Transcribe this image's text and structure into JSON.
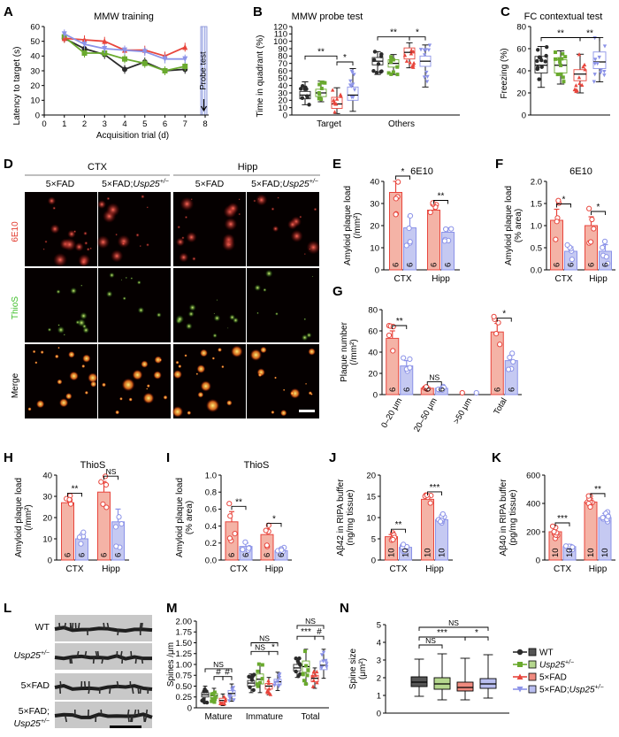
{
  "colors": {
    "wt": "#2b2b2b",
    "usp25": "#6aaa2e",
    "fad": "#e8453c",
    "fad_usp25": "#8c93e8",
    "fad_fill": "#f4b3a6",
    "fad_usp25_fill": "#c5c9f2",
    "probe_line": "#8a9ad8"
  },
  "legend": [
    {
      "key": "wt",
      "label": "WT",
      "italic": false
    },
    {
      "key": "usp25",
      "label": "Usp25",
      "sup": "+/−",
      "italic": true
    },
    {
      "key": "fad",
      "label": "5×FAD",
      "italic": false
    },
    {
      "key": "fad_usp25",
      "label": "5×FAD;",
      "label2": "Usp25",
      "sup": "+/−",
      "italic": false
    }
  ],
  "panel_letters": [
    "A",
    "B",
    "C",
    "D",
    "E",
    "F",
    "G",
    "H",
    "I",
    "J",
    "K",
    "L",
    "M",
    "N"
  ],
  "chart_data": [
    {
      "id": "A",
      "type": "line",
      "title": "MMW  training",
      "xlabel": "Acquisition trial (d)",
      "ylabel": "Latency to target (s)",
      "xlim": [
        0,
        8
      ],
      "ylim": [
        0,
        60
      ],
      "x_ticks": [
        0,
        1,
        2,
        3,
        4,
        5,
        6,
        7,
        8
      ],
      "y_ticks": [
        0,
        10,
        20,
        30,
        40,
        50,
        60
      ],
      "x": [
        1,
        2,
        3,
        4,
        5,
        6,
        7
      ],
      "series": [
        {
          "key": "wt",
          "values": [
            52,
            45,
            41,
            31,
            36,
            30,
            31
          ]
        },
        {
          "key": "usp25",
          "values": [
            53,
            42,
            42,
            38,
            35,
            30,
            33
          ]
        },
        {
          "key": "fad",
          "values": [
            52,
            51,
            50,
            44,
            44,
            40,
            46
          ]
        },
        {
          "key": "fad_usp25",
          "values": [
            55,
            48,
            45,
            44,
            43,
            38,
            38
          ]
        }
      ],
      "annotation": "Probe test"
    },
    {
      "id": "B",
      "type": "box",
      "title": "MMW  probe test",
      "ylabel": "Time in quadrant (%)",
      "ylim": [
        0,
        120
      ],
      "y_ticks": [
        0,
        10,
        20,
        30,
        40,
        50,
        60,
        70,
        80,
        90,
        100,
        110,
        120
      ],
      "categories": [
        "Target",
        "Others"
      ],
      "groups": [
        {
          "category": "Target",
          "key": "wt",
          "median": 27,
          "q1": 22,
          "q3": 32,
          "min": 14,
          "max": 45
        },
        {
          "category": "Target",
          "key": "usp25",
          "median": 30,
          "q1": 25,
          "q3": 35,
          "min": 18,
          "max": 46
        },
        {
          "category": "Target",
          "key": "fad",
          "median": 15,
          "q1": 9,
          "q3": 24,
          "min": 2,
          "max": 37
        },
        {
          "category": "Target",
          "key": "fad_usp25",
          "median": 27,
          "q1": 20,
          "q3": 38,
          "min": 5,
          "max": 63
        },
        {
          "category": "Others",
          "key": "wt",
          "median": 73,
          "q1": 68,
          "q3": 78,
          "min": 55,
          "max": 86
        },
        {
          "category": "Others",
          "key": "usp25",
          "median": 70,
          "q1": 65,
          "q3": 75,
          "min": 55,
          "max": 82
        },
        {
          "category": "Others",
          "key": "fad",
          "median": 85,
          "q1": 76,
          "q3": 91,
          "min": 64,
          "max": 98
        },
        {
          "category": "Others",
          "key": "fad_usp25",
          "median": 73,
          "q1": 66,
          "q3": 80,
          "min": 38,
          "max": 95
        }
      ],
      "significance": [
        "**",
        "*",
        "**",
        "*"
      ]
    },
    {
      "id": "C",
      "type": "box",
      "title": "FC contextual test",
      "ylabel": "Freezing (%)",
      "ylim": [
        0,
        80
      ],
      "y_ticks": [
        0,
        20,
        40,
        60,
        80
      ],
      "groups": [
        {
          "key": "wt",
          "median": 45,
          "q1": 38,
          "q3": 53,
          "min": 25,
          "max": 62
        },
        {
          "key": "usp25",
          "median": 45,
          "q1": 38,
          "q3": 50,
          "min": 28,
          "max": 58
        },
        {
          "key": "fad",
          "median": 37,
          "q1": 31,
          "q3": 41,
          "min": 20,
          "max": 55
        },
        {
          "key": "fad_usp25",
          "median": 48,
          "q1": 42,
          "q3": 57,
          "min": 30,
          "max": 70
        }
      ],
      "significance": [
        "**",
        "**"
      ]
    },
    {
      "id": "E",
      "type": "bar",
      "title": "6E10",
      "ylabel": "Amyloid plaque load",
      "ylabel2": "(/mm²)",
      "ylim": [
        0,
        40
      ],
      "y_ticks": [
        0,
        10,
        20,
        30,
        40
      ],
      "categories": [
        "CTX",
        "Hipp"
      ],
      "series": [
        {
          "key": "fad",
          "values": [
            35,
            27
          ],
          "errors": [
            5,
            2
          ],
          "n": [
            6,
            6
          ]
        },
        {
          "key": "fad_usp25",
          "values": [
            19,
            17
          ],
          "errors": [
            5,
            2
          ],
          "n": [
            6,
            6
          ]
        }
      ],
      "significance": [
        "*",
        "**"
      ]
    },
    {
      "id": "F",
      "type": "bar",
      "title": "6E10",
      "ylabel": "Amyloid plaque load",
      "ylabel2": "(% area)",
      "ylim": [
        0,
        2.0
      ],
      "y_ticks": [
        0,
        0.5,
        1.0,
        1.5,
        2.0
      ],
      "categories": [
        "CTX",
        "Hipp"
      ],
      "series": [
        {
          "key": "fad",
          "values": [
            1.12,
            1.0
          ],
          "errors": [
            0.25,
            0.2
          ],
          "n": [
            6,
            6
          ]
        },
        {
          "key": "fad_usp25",
          "values": [
            0.42,
            0.42
          ],
          "errors": [
            0.1,
            0.15
          ],
          "n": [
            6,
            6
          ]
        }
      ],
      "significance": [
        "*",
        "*"
      ]
    },
    {
      "id": "G",
      "type": "bar",
      "ylabel": "Plaque number",
      "ylabel2": "(/mm²)",
      "ylim": [
        0,
        80
      ],
      "y_ticks": [
        0,
        20,
        40,
        60,
        80
      ],
      "categories": [
        "0–20 μm",
        "20–50 μm",
        ">50 μm",
        "Total"
      ],
      "series": [
        {
          "key": "fad",
          "values": [
            53,
            6,
            0,
            59
          ],
          "errors": [
            7,
            1,
            0,
            8
          ],
          "n": [
            6,
            6,
            null,
            6
          ]
        },
        {
          "key": "fad_usp25",
          "values": [
            27,
            6,
            0,
            32
          ],
          "errors": [
            5,
            1,
            0,
            5
          ],
          "n": [
            6,
            6,
            null,
            6
          ]
        }
      ],
      "significance": [
        "**",
        "NS",
        "",
        "*"
      ]
    },
    {
      "id": "H",
      "type": "bar",
      "title": "ThioS",
      "ylabel": "Amyloid plaque load",
      "ylabel2": "(/mm²)",
      "ylim": [
        0,
        40
      ],
      "y_ticks": [
        0,
        10,
        20,
        30,
        40
      ],
      "categories": [
        "CTX",
        "Hipp"
      ],
      "series": [
        {
          "key": "fad",
          "values": [
            27,
            32
          ],
          "errors": [
            2,
            5
          ],
          "n": [
            6,
            6
          ]
        },
        {
          "key": "fad_usp25",
          "values": [
            10,
            18
          ],
          "errors": [
            2,
            6
          ],
          "n": [
            6,
            6
          ]
        }
      ],
      "significance": [
        "**",
        "NS"
      ]
    },
    {
      "id": "I",
      "type": "bar",
      "title": "ThioS",
      "ylabel": "Amyloid plaque load",
      "ylabel2": "(% area)",
      "ylim": [
        0,
        1.0
      ],
      "y_ticks": [
        0,
        0.2,
        0.4,
        0.6,
        0.8,
        1.0
      ],
      "categories": [
        "CTX",
        "Hipp"
      ],
      "series": [
        {
          "key": "fad",
          "values": [
            0.45,
            0.3
          ],
          "errors": [
            0.12,
            0.07
          ],
          "n": [
            6,
            6
          ]
        },
        {
          "key": "fad_usp25",
          "values": [
            0.16,
            0.11
          ],
          "errors": [
            0.04,
            0.02
          ],
          "n": [
            6,
            6
          ]
        }
      ],
      "significance": [
        "**",
        "*"
      ]
    },
    {
      "id": "J",
      "type": "bar",
      "ylabel": "Aβ42 in RIPA buffer",
      "ylabel2": "(ng/mg tissue)",
      "ylim": [
        0,
        20
      ],
      "y_ticks": [
        0,
        5,
        10,
        15,
        20
      ],
      "categories": [
        "CTX",
        "Hipp"
      ],
      "series": [
        {
          "key": "fad",
          "values": [
            5.5,
            14.3
          ],
          "errors": [
            0.5,
            0.5
          ],
          "n": [
            10,
            10
          ]
        },
        {
          "key": "fad_usp25",
          "values": [
            3.0,
            9.5
          ],
          "errors": [
            0.5,
            0.7
          ],
          "n": [
            10,
            10
          ]
        }
      ],
      "significance": [
        "**",
        "***"
      ]
    },
    {
      "id": "K",
      "type": "bar",
      "ylabel": "Aβ40 in RIPA buffer",
      "ylabel2": "(pg/mg tissue)",
      "ylim": [
        0,
        600
      ],
      "y_ticks": [
        0,
        200,
        400,
        600
      ],
      "categories": [
        "CTX",
        "Hipp"
      ],
      "series": [
        {
          "key": "fad",
          "values": [
            200,
            410
          ],
          "errors": [
            25,
            22
          ],
          "n": [
            10,
            10
          ]
        },
        {
          "key": "fad_usp25",
          "values": [
            95,
            300
          ],
          "errors": [
            15,
            30
          ],
          "n": [
            10,
            10
          ]
        }
      ],
      "significance": [
        "***",
        "**"
      ]
    },
    {
      "id": "M",
      "type": "box",
      "ylabel": "Spines /μm",
      "ylim": [
        0,
        2.0
      ],
      "y_ticks": [
        0,
        0.25,
        0.5,
        0.75,
        1.0,
        1.25,
        1.5,
        1.75,
        2.0
      ],
      "categories": [
        "Mature",
        "Immature",
        "Total"
      ],
      "groups": [
        {
          "category": "Mature",
          "key": "wt",
          "median": 0.3,
          "q1": 0.25,
          "q3": 0.35,
          "min": 0.1,
          "max": 0.5
        },
        {
          "category": "Mature",
          "key": "usp25",
          "median": 0.28,
          "q1": 0.22,
          "q3": 0.33,
          "min": 0.12,
          "max": 0.45
        },
        {
          "category": "Mature",
          "key": "fad",
          "median": 0.17,
          "q1": 0.13,
          "q3": 0.22,
          "min": 0.05,
          "max": 0.32
        },
        {
          "category": "Mature",
          "key": "fad_usp25",
          "median": 0.33,
          "q1": 0.27,
          "q3": 0.4,
          "min": 0.15,
          "max": 0.55
        },
        {
          "category": "Immature",
          "key": "wt",
          "median": 0.57,
          "q1": 0.5,
          "q3": 0.63,
          "min": 0.35,
          "max": 0.78
        },
        {
          "category": "Immature",
          "key": "usp25",
          "median": 0.66,
          "q1": 0.55,
          "q3": 0.78,
          "min": 0.35,
          "max": 1.02
        },
        {
          "category": "Immature",
          "key": "fad",
          "median": 0.5,
          "q1": 0.43,
          "q3": 0.56,
          "min": 0.3,
          "max": 0.7
        },
        {
          "category": "Immature",
          "key": "fad_usp25",
          "median": 0.6,
          "q1": 0.53,
          "q3": 0.66,
          "min": 0.4,
          "max": 0.82
        },
        {
          "category": "Total",
          "key": "wt",
          "median": 0.92,
          "q1": 0.85,
          "q3": 1.0,
          "min": 0.7,
          "max": 1.15
        },
        {
          "category": "Total",
          "key": "usp25",
          "median": 0.95,
          "q1": 0.82,
          "q3": 1.08,
          "min": 0.55,
          "max": 1.35
        },
        {
          "category": "Total",
          "key": "fad",
          "median": 0.68,
          "q1": 0.6,
          "q3": 0.75,
          "min": 0.45,
          "max": 0.92
        },
        {
          "category": "Total",
          "key": "fad_usp25",
          "median": 0.98,
          "q1": 0.88,
          "q3": 1.08,
          "min": 0.68,
          "max": 1.35
        }
      ],
      "significance": [
        "NS",
        "#",
        "#",
        "NS",
        "NS",
        "*",
        "NS",
        "***",
        "#"
      ]
    },
    {
      "id": "N",
      "type": "box",
      "ylabel": "Spine size",
      "ylabel2": "(μm²)",
      "ylim": [
        0,
        5
      ],
      "y_ticks": [
        0,
        1,
        2,
        3,
        4,
        5
      ],
      "groups": [
        {
          "key": "wt",
          "median": 1.75,
          "q1": 1.5,
          "q3": 2.05,
          "min": 0.95,
          "max": 3.05
        },
        {
          "key": "usp25",
          "median": 1.65,
          "q1": 1.35,
          "q3": 2.0,
          "min": 0.75,
          "max": 3.35
        },
        {
          "key": "fad",
          "median": 1.45,
          "q1": 1.25,
          "q3": 1.75,
          "min": 0.75,
          "max": 3.1
        },
        {
          "key": "fad_usp25",
          "median": 1.65,
          "q1": 1.4,
          "q3": 1.95,
          "min": 0.85,
          "max": 3.3
        }
      ],
      "significance": [
        "NS",
        "***",
        "*",
        "NS"
      ]
    }
  ],
  "panel_D": {
    "region_headers": [
      "CTX",
      "Hipp"
    ],
    "column_headers": [
      "5×FAD",
      "5×FAD;",
      "5×FAD",
      "5×FAD;"
    ],
    "column_gene": "Usp25",
    "column_sup": "+/−",
    "row_labels": [
      "6E10",
      "ThioS",
      "Merge"
    ]
  },
  "panel_L": {
    "row_labels": [
      "WT",
      "Usp25",
      "5×FAD",
      "5×FAD;",
      "Usp25"
    ],
    "sup": "+/−"
  }
}
